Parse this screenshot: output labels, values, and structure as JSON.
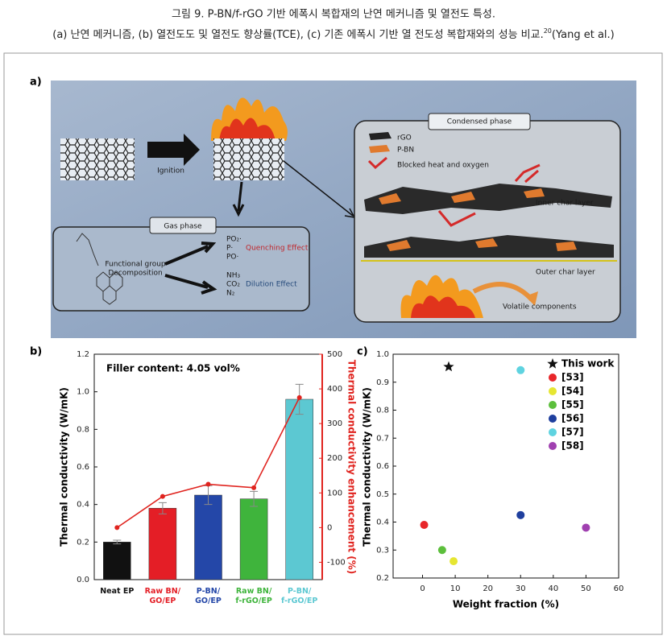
{
  "caption": {
    "line1": "그림 9. P-BN/f-rGO 기반 에폭시 복합재의 난연 메커니즘 및 열전도 특성.",
    "line2": "(a) 난연 메커니즘, (b) 열전도도 및 열전도 향상률(TCE), (c) 기존 에폭시 기반 열 전도성 복합재와의 성능 비교.",
    "ref_number": "20",
    "ref": "(Yang et al.)"
  },
  "panel_labels": [
    "a)",
    "b)",
    "c)"
  ],
  "diagram": {
    "ignition": "Ignition",
    "gas_phase": {
      "title": "Gas phase",
      "group": [
        "Functional group",
        "Decomposition"
      ],
      "radicals": [
        "PO₂·",
        "P·",
        "PO·"
      ],
      "quenching": "Quenching Effect",
      "gases": [
        "NH₃",
        "CO₂",
        "N₂"
      ],
      "dilution": "Dilution Effect"
    },
    "condensed_phase": {
      "title": "Condensed phase",
      "legend": [
        "rGO",
        "P-BN",
        "Blocked heat and oxygen"
      ],
      "inner": "Inner char layer",
      "outer": "Outer char layer",
      "volatile": "Volatile components"
    }
  },
  "chart_data": [
    {
      "type": "bar",
      "annotation": "Filler content: 4.05 vol%",
      "ylabel": "Thermal conductivity (W/mK)",
      "y2label": "Thermal conductivity enhancement (%)",
      "categories": [
        [
          "Neat EP"
        ],
        [
          "Raw BN/",
          "GO/EP"
        ],
        [
          "P-BN/",
          "GO/EP"
        ],
        [
          "Raw BN/",
          "f-rGO/EP"
        ],
        [
          "P-BN/",
          "f-rGO/EP"
        ]
      ],
      "series": [
        {
          "type": "bar",
          "colors": [
            "#111111",
            "#e41e26",
            "#2447a8",
            "#3fb43c",
            "#5cc8d2"
          ],
          "values": [
            0.2,
            0.38,
            0.45,
            0.43,
            0.96
          ],
          "errors": [
            0.01,
            0.03,
            0.05,
            0.04,
            0.08
          ]
        },
        {
          "type": "line",
          "axis": "y2",
          "color": "#e0241f",
          "values": [
            0,
            90,
            125,
            115,
            375
          ]
        }
      ],
      "ylim": [
        0,
        1.2
      ],
      "yticks": [
        {
          "value": 0,
          "label": "0.0"
        },
        0.2,
        0.4,
        0.6,
        0.8,
        {
          "value": 1,
          "label": "1.0"
        },
        1.2
      ],
      "y2lim": [
        -150,
        500
      ],
      "y2ticks": [
        -100,
        0,
        100,
        200,
        300,
        400,
        500
      ],
      "y2color": "#e0241f"
    },
    {
      "type": "scatter",
      "xlabel": "Weight fraction (%)",
      "ylabel": "Thermal conductivity (W/mK)",
      "series": [
        {
          "name": "This work",
          "color": "#111111",
          "marker": "star",
          "x": [
            8
          ],
          "values": [
            0.955
          ]
        },
        {
          "name": "[53]",
          "color": "#e8262a",
          "marker": "circle",
          "x": [
            0.5
          ],
          "values": [
            0.39
          ]
        },
        {
          "name": "[54]",
          "color": "#e6e632",
          "marker": "circle",
          "x": [
            9.5
          ],
          "values": [
            0.26
          ]
        },
        {
          "name": "[55]",
          "color": "#5cbf3c",
          "marker": "circle",
          "x": [
            6
          ],
          "values": [
            0.3
          ]
        },
        {
          "name": "[56]",
          "color": "#1f3f9e",
          "marker": "circle",
          "x": [
            30
          ],
          "values": [
            0.425
          ]
        },
        {
          "name": "[57]",
          "color": "#5fd3e0",
          "marker": "circle",
          "x": [
            30
          ],
          "values": [
            0.943
          ]
        },
        {
          "name": "[58]",
          "color": "#a040b0",
          "marker": "circle",
          "x": [
            50
          ],
          "values": [
            0.38
          ]
        }
      ],
      "xlim": [
        -9,
        60
      ],
      "xticks": [
        0,
        10,
        20,
        30,
        40,
        50,
        60
      ],
      "ylim": [
        0.2,
        1.0
      ],
      "yticks": [
        0.2,
        0.3,
        0.4,
        0.5,
        0.6,
        0.7,
        0.8,
        0.9,
        {
          "value": 1,
          "label": "1.0"
        }
      ]
    }
  ]
}
